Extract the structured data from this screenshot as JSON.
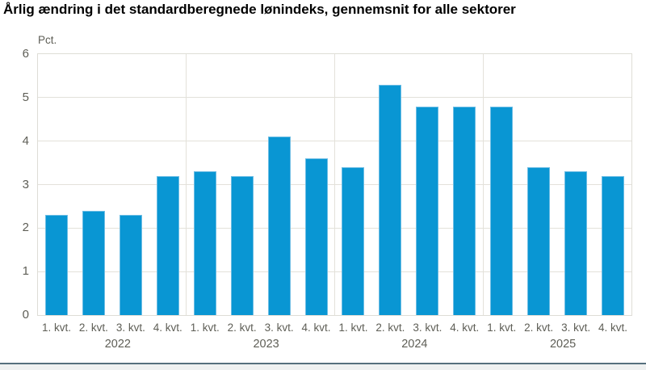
{
  "chart_data": {
    "type": "bar",
    "title": "Årlig ændring i det standardberegnede lønindeks, gennemsnit for alle sektorer",
    "ylabel": "Pct.",
    "xlabel": "",
    "ylim": [
      0,
      6
    ],
    "ytick_step": 1,
    "yticks": [
      "0",
      "1",
      "2",
      "3",
      "4",
      "5",
      "6"
    ],
    "grid": true,
    "legend": "none",
    "quarter_labels": [
      "1. kvt.",
      "2. kvt.",
      "3. kvt.",
      "4. kvt."
    ],
    "categories": [
      "1. kvt.",
      "2. kvt.",
      "3. kvt.",
      "4. kvt.",
      "1. kvt.",
      "2. kvt.",
      "3. kvt.",
      "4. kvt.",
      "1. kvt.",
      "2. kvt.",
      "3. kvt.",
      "4. kvt.",
      "1. kvt.",
      "2. kvt.",
      "3. kvt.",
      "4. kvt."
    ],
    "values": [
      2.3,
      2.4,
      2.3,
      3.2,
      3.3,
      3.2,
      4.1,
      3.6,
      3.4,
      5.3,
      4.8,
      4.8,
      4.8,
      3.4,
      3.3,
      3.2
    ],
    "groups": [
      {
        "year": "2022",
        "values": [
          2.3,
          2.4,
          2.3,
          3.2
        ]
      },
      {
        "year": "2023",
        "values": [
          3.3,
          3.2,
          4.1,
          3.6
        ]
      },
      {
        "year": "2024",
        "values": [
          3.4,
          5.3,
          4.8,
          4.8
        ]
      },
      {
        "year": "2025",
        "values": [
          4.8,
          3.4,
          3.3,
          3.2
        ]
      }
    ]
  },
  "colors": {
    "bar": "#0996d3",
    "bar_edge": "#6dbde4",
    "grid": "#e3e1da",
    "axis_text": "#5e5e56",
    "title_text": "#000000",
    "footer_line": "#56707e",
    "footer_bg": "#eff1f1",
    "background": "#ffffff"
  }
}
